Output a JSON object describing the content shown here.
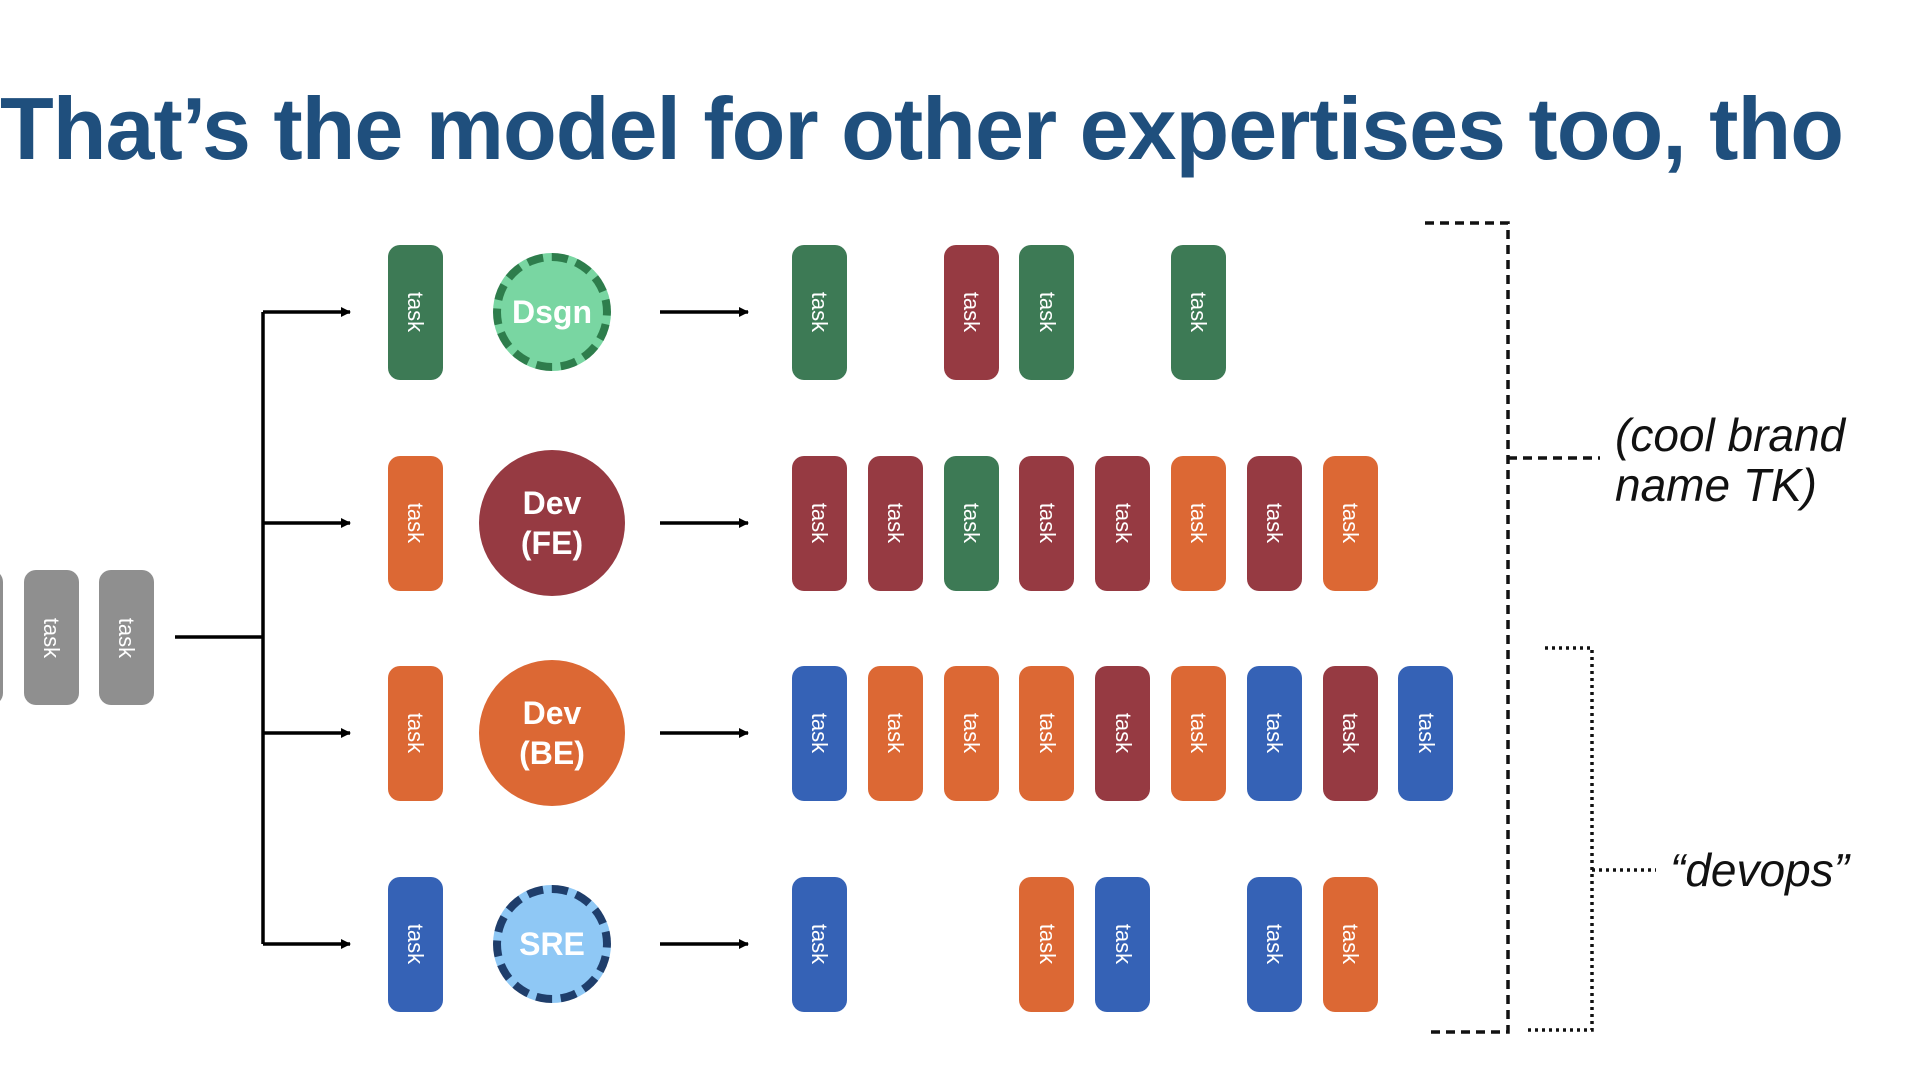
{
  "title": "That’s the model for other expertises too, tho",
  "task_label": "task",
  "colors": {
    "title": "#1f4f7d",
    "gray": "#8f8f8f",
    "green": "#3d7a55",
    "red": "#963a42",
    "orange": "#dc6834",
    "blue": "#3562b6",
    "design_circle": "#79d6a2",
    "design_border": "#2e7d4c",
    "sre_circle": "#8fc8f5",
    "sre_border": "#1f3e6b"
  },
  "backlog": [
    "gray",
    "gray",
    "gray"
  ],
  "teams": [
    {
      "role": "Dsgn",
      "role_icon": "dashed-circle",
      "role_color": "design_circle",
      "role_border": "design_border",
      "intake_task": "green",
      "output_tasks": [
        "green",
        null,
        "red",
        "green",
        null,
        "green"
      ]
    },
    {
      "role": "Dev\n(FE)",
      "role_icon": "solid-circle",
      "role_color": "red",
      "intake_task": "orange",
      "output_tasks": [
        "red",
        "red",
        "green",
        "red",
        "red",
        "orange",
        "red",
        "orange"
      ]
    },
    {
      "role": "Dev\n(BE)",
      "role_icon": "solid-circle",
      "role_color": "orange",
      "intake_task": "orange",
      "output_tasks": [
        "blue",
        "orange",
        "orange",
        "orange",
        "red",
        "orange",
        "blue",
        "red",
        "blue"
      ]
    },
    {
      "role": "SRE",
      "role_icon": "dashed-circle",
      "role_color": "sre_circle",
      "role_border": "sre_border",
      "intake_task": "blue",
      "output_tasks": [
        "blue",
        null,
        null,
        "orange",
        "blue",
        null,
        "blue",
        "orange"
      ]
    }
  ],
  "annotations": {
    "brand": "(cool brand\nname TK)",
    "devops": "“devops”"
  }
}
